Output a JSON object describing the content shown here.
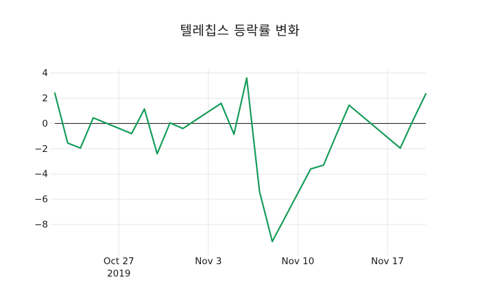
{
  "chart_data": {
    "type": "line",
    "title": "텔레칩스 등락률 변화",
    "xlabel": "",
    "ylabel": "",
    "grid": true,
    "legend": false,
    "line_color": "#159b58",
    "line_width": 2.2,
    "zero_line_color": "#2b2b2b",
    "grid_color": "#e6e6e6",
    "tick_label_color": "#1a1a1a",
    "background_color": "#ffffff",
    "ylim": [
      -9.95,
      4.25
    ],
    "xlim_days": [
      0,
      29
    ],
    "y_ticks": [
      {
        "value": 4,
        "label": "4"
      },
      {
        "value": 2,
        "label": "2"
      },
      {
        "value": 0,
        "label": "0"
      },
      {
        "value": -2,
        "label": "−2"
      },
      {
        "value": -4,
        "label": "−4"
      },
      {
        "value": -6,
        "label": "−6"
      },
      {
        "value": -8,
        "label": "−8"
      }
    ],
    "x_ticks": [
      {
        "day": 5,
        "label": "Oct 27",
        "sublabel": "2019"
      },
      {
        "day": 12,
        "label": "Nov 3",
        "sublabel": ""
      },
      {
        "day": 19,
        "label": "Nov 10",
        "sublabel": ""
      },
      {
        "day": 26,
        "label": "Nov 17",
        "sublabel": ""
      }
    ],
    "points": [
      {
        "date": "2019-10-22",
        "day": 0,
        "value": 2.4
      },
      {
        "date": "2019-10-23",
        "day": 1,
        "value": -1.55
      },
      {
        "date": "2019-10-24",
        "day": 2,
        "value": -1.95
      },
      {
        "date": "2019-10-25",
        "day": 3,
        "value": 0.45
      },
      {
        "date": "2019-10-28",
        "day": 6,
        "value": -0.8
      },
      {
        "date": "2019-10-29",
        "day": 7,
        "value": 1.15
      },
      {
        "date": "2019-10-30",
        "day": 8,
        "value": -2.4
      },
      {
        "date": "2019-10-31",
        "day": 9,
        "value": 0.05
      },
      {
        "date": "2019-11-01",
        "day": 10,
        "value": -0.4
      },
      {
        "date": "2019-11-04",
        "day": 13,
        "value": 1.6
      },
      {
        "date": "2019-11-05",
        "day": 14,
        "value": -0.85
      },
      {
        "date": "2019-11-06",
        "day": 15,
        "value": 3.6
      },
      {
        "date": "2019-11-07",
        "day": 16,
        "value": -5.4
      },
      {
        "date": "2019-11-08",
        "day": 17,
        "value": -9.35
      },
      {
        "date": "2019-11-11",
        "day": 20,
        "value": -3.6
      },
      {
        "date": "2019-11-12",
        "day": 21,
        "value": -3.3
      },
      {
        "date": "2019-11-13",
        "day": 22,
        "value": -0.9
      },
      {
        "date": "2019-11-14",
        "day": 23,
        "value": 1.45
      },
      {
        "date": "2019-11-15",
        "day": 24,
        "value": 0.6
      },
      {
        "date": "2019-11-18",
        "day": 27,
        "value": -1.95
      },
      {
        "date": "2019-11-19",
        "day": 28,
        "value": 0.25
      },
      {
        "date": "2019-11-20",
        "day": 29,
        "value": 2.35
      }
    ]
  }
}
